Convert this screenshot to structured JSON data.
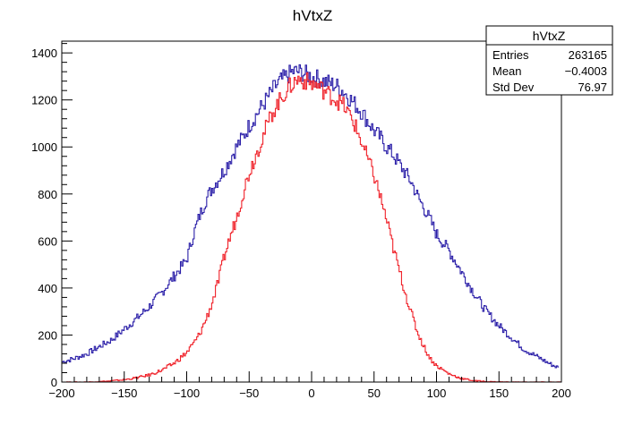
{
  "chart_data": {
    "type": "line",
    "title": "hVtxZ",
    "xlabel": "",
    "ylabel": "",
    "xlim": [
      -200,
      200
    ],
    "ylim": [
      0,
      1450
    ],
    "xticks": [
      -200,
      -150,
      -100,
      -50,
      0,
      50,
      100,
      150,
      200
    ],
    "yticks": [
      0,
      200,
      400,
      600,
      800,
      1000,
      1200,
      1400
    ],
    "grid": false,
    "histogram_step": true,
    "series": [
      {
        "color": "#2a1ea8",
        "x": [
          -200,
          -190,
          -180,
          -170,
          -160,
          -150,
          -140,
          -130,
          -120,
          -110,
          -100,
          -95,
          -90,
          -85,
          -80,
          -75,
          -70,
          -65,
          -60,
          -55,
          -50,
          -45,
          -40,
          -35,
          -30,
          -25,
          -20,
          -15,
          -10,
          -5,
          0,
          5,
          10,
          15,
          20,
          25,
          30,
          35,
          40,
          45,
          50,
          55,
          60,
          65,
          70,
          75,
          80,
          85,
          90,
          95,
          100,
          110,
          120,
          130,
          140,
          150,
          160,
          170,
          180,
          190,
          198
        ],
        "values": [
          85,
          100,
          120,
          150,
          180,
          225,
          270,
          320,
          380,
          450,
          520,
          620,
          700,
          770,
          820,
          860,
          900,
          950,
          1000,
          1040,
          1090,
          1130,
          1170,
          1210,
          1250,
          1280,
          1300,
          1320,
          1320,
          1310,
          1300,
          1290,
          1280,
          1270,
          1260,
          1240,
          1210,
          1180,
          1150,
          1110,
          1070,
          1040,
          1000,
          970,
          930,
          890,
          850,
          790,
          740,
          690,
          630,
          560,
          470,
          380,
          300,
          240,
          190,
          140,
          110,
          80,
          60
        ]
      },
      {
        "color": "#f0222a",
        "x": [
          -200,
          -180,
          -170,
          -160,
          -150,
          -140,
          -130,
          -120,
          -110,
          -100,
          -95,
          -90,
          -85,
          -80,
          -75,
          -70,
          -65,
          -60,
          -55,
          -50,
          -45,
          -40,
          -35,
          -30,
          -25,
          -20,
          -15,
          -10,
          -5,
          0,
          5,
          10,
          15,
          20,
          25,
          30,
          35,
          40,
          45,
          50,
          55,
          60,
          65,
          70,
          75,
          80,
          85,
          90,
          95,
          100,
          110,
          120,
          130,
          140,
          150,
          160,
          180,
          200
        ],
        "values": [
          0,
          0,
          2,
          5,
          10,
          18,
          30,
          50,
          80,
          125,
          160,
          200,
          260,
          330,
          420,
          530,
          620,
          700,
          800,
          890,
          960,
          1030,
          1100,
          1160,
          1200,
          1240,
          1270,
          1290,
          1280,
          1270,
          1260,
          1240,
          1220,
          1200,
          1180,
          1140,
          1090,
          1020,
          950,
          880,
          790,
          690,
          580,
          480,
          380,
          290,
          210,
          150,
          100,
          70,
          35,
          15,
          6,
          2,
          1,
          0,
          0,
          0
        ]
      }
    ],
    "stats_box": {
      "title": "hVtxZ",
      "rows": [
        {
          "label": "Entries",
          "value": "263165"
        },
        {
          "label": "Mean",
          "value": "−0.4003"
        },
        {
          "label": "Std Dev",
          "value": "76.97"
        }
      ]
    }
  }
}
